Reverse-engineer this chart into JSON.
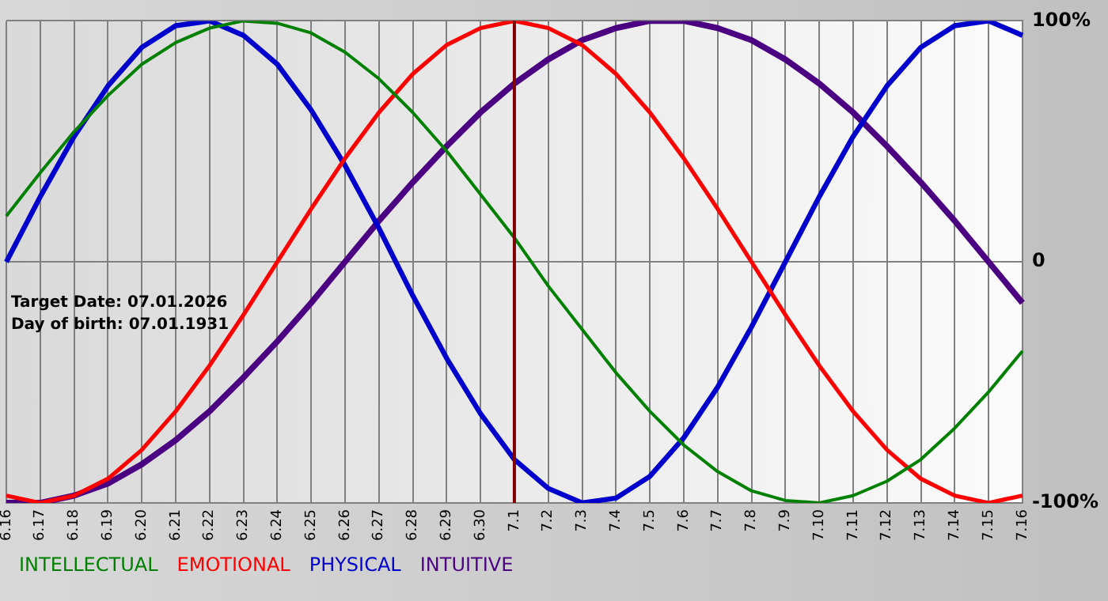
{
  "chart_data": {
    "type": "line",
    "categories": [
      "6.16",
      "6.17",
      "6.18",
      "6.19",
      "6.20",
      "6.21",
      "6.22",
      "6.23",
      "6.24",
      "6.25",
      "6.26",
      "6.27",
      "6.28",
      "6.29",
      "6.30",
      "7.1",
      "7.2",
      "7.3",
      "7.4",
      "7.5",
      "7.6",
      "7.7",
      "7.8",
      "7.9",
      "7.10",
      "7.11",
      "7.12",
      "7.13",
      "7.14",
      "7.15",
      "7.16"
    ],
    "series": [
      {
        "name": "INTELLECTUAL",
        "color": "#008000",
        "values": [
          19,
          37,
          54,
          69,
          82,
          91,
          97,
          100,
          99,
          95,
          87,
          76,
          62,
          46,
          28,
          10,
          -10,
          -28,
          -46,
          -62,
          -76,
          -87,
          -95,
          -99,
          -100,
          -97,
          -91,
          -82,
          -69,
          -54,
          -37
        ]
      },
      {
        "name": "EMOTIONAL",
        "color": "#ff0000",
        "values": [
          -97,
          -100,
          -97,
          -90,
          -78,
          -62,
          -43,
          -22,
          0,
          22,
          43,
          62,
          78,
          90,
          97,
          100,
          97,
          90,
          78,
          62,
          43,
          22,
          0,
          -22,
          -43,
          -62,
          -78,
          -90,
          -97,
          -100,
          -97
        ]
      },
      {
        "name": "PHYSICAL",
        "color": "#0000cc",
        "values": [
          0,
          27,
          52,
          73,
          89,
          98,
          100,
          94,
          82,
          63,
          40,
          14,
          -14,
          -40,
          -63,
          -82,
          -94,
          -100,
          -98,
          -89,
          -73,
          -52,
          -27,
          0,
          27,
          52,
          73,
          89,
          98,
          100,
          94
        ]
      },
      {
        "name": "INTUITIVE",
        "color": "#4b0082",
        "values": [
          -100,
          -100,
          -97,
          -92,
          -84,
          -74,
          -62,
          -48,
          -33,
          -17,
          0,
          17,
          33,
          48,
          62,
          74,
          84,
          92,
          97,
          100,
          100,
          97,
          92,
          84,
          74,
          62,
          48,
          33,
          17,
          0,
          -17
        ]
      }
    ],
    "ylim": [
      -100,
      100
    ],
    "yticks": [
      {
        "value": -100,
        "label": "-100%"
      },
      0,
      {
        "value": 100,
        "label": "100%"
      }
    ],
    "grid": true,
    "legend": "bottom",
    "marker": "none",
    "line_style": "solid",
    "ref_lines": [
      {
        "axis": "x",
        "value": "7.1",
        "color": "#800000"
      }
    ],
    "annotations": [
      "Target Date: 07.01.2026",
      "Day of birth: 07.01.1931"
    ]
  }
}
